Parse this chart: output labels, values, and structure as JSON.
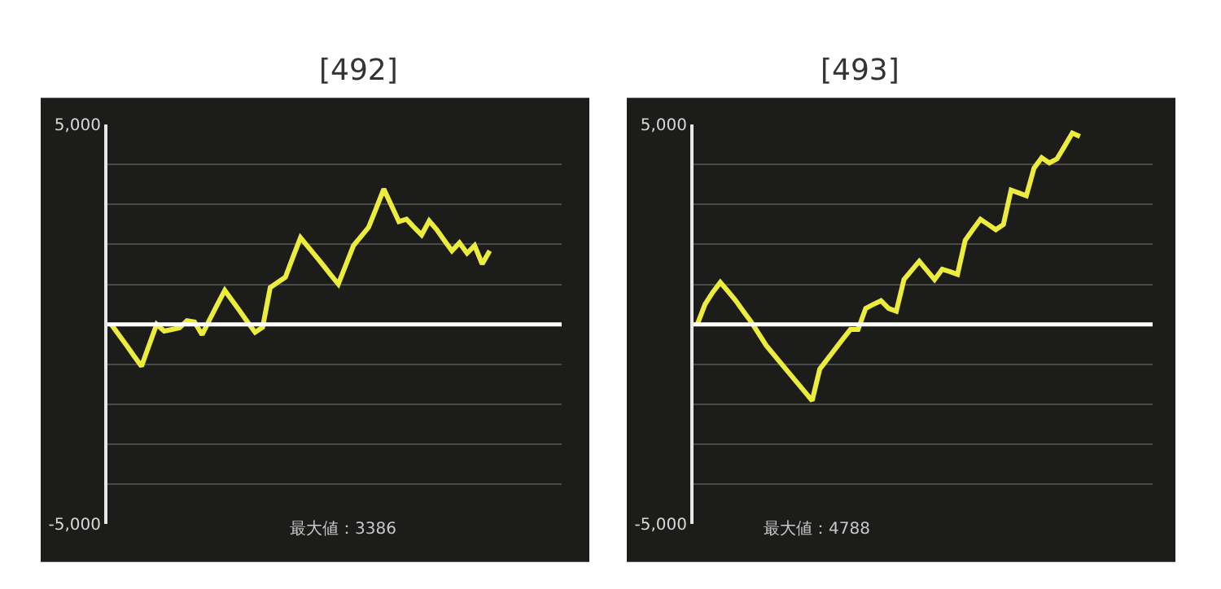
{
  "chart_data": [
    {
      "type": "line",
      "title": "[492]",
      "categories": [
        null,
        null,
        null,
        null,
        null,
        null,
        null,
        null,
        null,
        null,
        null,
        null,
        null,
        null,
        null,
        null,
        null,
        null,
        null,
        null,
        null,
        null,
        null,
        null,
        null,
        null,
        null,
        null,
        null,
        null,
        null,
        null,
        null,
        null,
        null,
        null,
        null,
        null,
        null,
        null,
        null,
        null,
        null,
        null,
        null,
        null,
        null,
        null,
        null,
        null,
        null,
        null,
        null,
        null,
        null,
        null,
        null,
        null,
        null,
        null
      ],
      "series": [
        {
          "color": "#ecec3c",
          "values": [
            0,
            -260,
            -520,
            -790,
            -1050,
            -520,
            0,
            -170,
            -130,
            -90,
            90,
            60,
            -260,
            120,
            490,
            850,
            590,
            330,
            60,
            -200,
            -70,
            920,
            1050,
            1180,
            1680,
            2170,
            1940,
            1710,
            1480,
            1240,
            1010,
            1490,
            1970,
            2200,
            2430,
            2900,
            3386,
            2980,
            2570,
            2630,
            2430,
            2240,
            2590,
            2370,
            2100,
            1840,
            2040,
            1780,
            1970,
            1510,
            1840,
            null,
            null,
            null,
            null,
            null,
            null,
            null,
            null,
            null
          ]
        }
      ],
      "ylim": [
        -5000,
        5000
      ],
      "yticks": [
        {
          "value": -5000,
          "label": "-5,000"
        },
        {
          "value": -4000,
          "label": null
        },
        {
          "value": -3000,
          "label": null
        },
        {
          "value": -2000,
          "label": null
        },
        {
          "value": -1000,
          "label": null
        },
        {
          "value": 0,
          "label": null
        },
        {
          "value": 1000,
          "label": null
        },
        {
          "value": 2000,
          "label": null
        },
        {
          "value": 3000,
          "label": null
        },
        {
          "value": 4000,
          "label": null
        },
        {
          "value": 5000,
          "label": "5,000"
        }
      ],
      "ref_lines": [
        {
          "axis": "y",
          "value": 0,
          "color": "#ffffff"
        }
      ],
      "grid": "y",
      "tick_labels": "y",
      "marker": "none",
      "line_style": "solid",
      "annotations": [
        "最大値：3386"
      ]
    },
    {
      "type": "line",
      "title": "[493]",
      "categories": [
        null,
        null,
        null,
        null,
        null,
        null,
        null,
        null,
        null,
        null,
        null,
        null,
        null,
        null,
        null,
        null,
        null,
        null,
        null,
        null,
        null,
        null,
        null,
        null,
        null,
        null,
        null,
        null,
        null,
        null,
        null,
        null,
        null,
        null,
        null,
        null,
        null,
        null,
        null,
        null,
        null,
        null,
        null,
        null,
        null,
        null,
        null,
        null,
        null,
        null,
        null,
        null,
        null,
        null,
        null,
        null,
        null,
        null,
        null,
        null
      ],
      "series": [
        {
          "color": "#ecec3c",
          "values": [
            0,
            500,
            800,
            1050,
            830,
            600,
            330,
            70,
            -230,
            -530,
            -760,
            -990,
            -1220,
            -1450,
            -1680,
            -1910,
            -1120,
            -870,
            -620,
            -370,
            -130,
            -130,
            400,
            500,
            590,
            400,
            330,
            1120,
            1350,
            1580,
            1350,
            1120,
            1380,
            1320,
            1250,
            2100,
            2370,
            2630,
            2500,
            2370,
            2500,
            3360,
            3290,
            3220,
            3910,
            4170,
            4040,
            4140,
            4460,
            4788,
            4700,
            null,
            null,
            null,
            null,
            null,
            null,
            null,
            null,
            null
          ]
        }
      ],
      "ylim": [
        -5000,
        5000
      ],
      "yticks": [
        {
          "value": -5000,
          "label": "-5,000"
        },
        {
          "value": -4000,
          "label": null
        },
        {
          "value": -3000,
          "label": null
        },
        {
          "value": -2000,
          "label": null
        },
        {
          "value": -1000,
          "label": null
        },
        {
          "value": 0,
          "label": null
        },
        {
          "value": 1000,
          "label": null
        },
        {
          "value": 2000,
          "label": null
        },
        {
          "value": 3000,
          "label": null
        },
        {
          "value": 4000,
          "label": null
        },
        {
          "value": 5000,
          "label": "5,000"
        }
      ],
      "ref_lines": [
        {
          "axis": "y",
          "value": 0,
          "color": "#ffffff"
        }
      ],
      "grid": "y",
      "tick_labels": "y",
      "marker": "none",
      "line_style": "solid",
      "annotations": [
        "最大値：4788"
      ]
    }
  ]
}
